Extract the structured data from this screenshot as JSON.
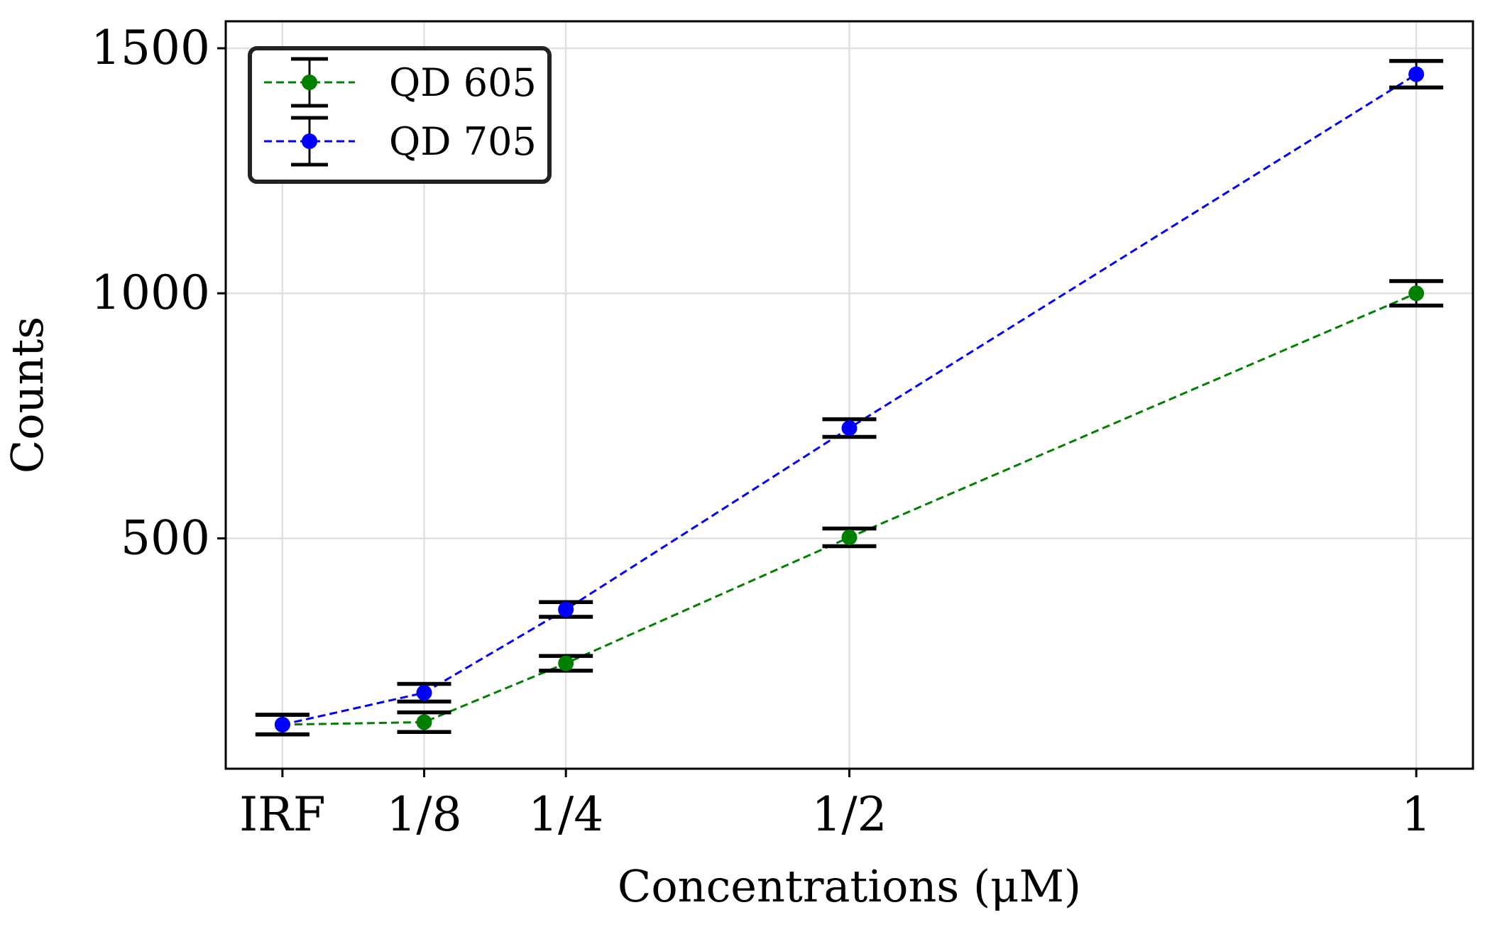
{
  "chart_data": {
    "type": "line",
    "title": "",
    "xlabel": "Concentrations (μM)",
    "ylabel": "Counts",
    "categories": [
      "IRF",
      "1/8",
      "1/4",
      "1/2",
      "1"
    ],
    "x": [
      0,
      0.125,
      0.25,
      0.5,
      1.0
    ],
    "ylim": [
      30,
      1555
    ],
    "yticks": [
      500,
      1000,
      1500
    ],
    "grid": true,
    "legend_position": "top-left",
    "series": [
      {
        "name": "QD 605",
        "color": "#008000",
        "linestyle": "dashed",
        "marker": "circle",
        "values": [
          120,
          125,
          245,
          502,
          1000
        ],
        "errors": [
          20,
          20,
          15,
          18,
          25
        ]
      },
      {
        "name": "QD 705",
        "color": "#0000ff",
        "linestyle": "dashed",
        "marker": "circle",
        "values": [
          120,
          185,
          355,
          725,
          1447
        ],
        "errors": [
          20,
          18,
          15,
          18,
          27
        ]
      }
    ],
    "legend_error_color": "#000000"
  }
}
